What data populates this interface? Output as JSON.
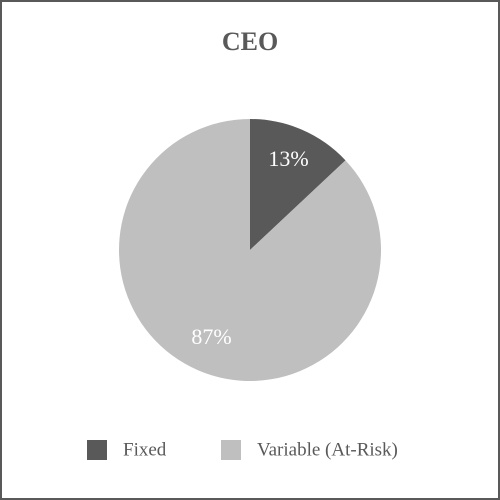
{
  "chart_data": {
    "type": "pie",
    "title": "CEO",
    "categories": [
      "Fixed",
      "Variable (At-Risk)"
    ],
    "values": [
      13,
      87
    ],
    "value_labels": [
      "13%",
      "87%"
    ],
    "colors": [
      "#595959",
      "#bfbfbf"
    ],
    "legend": "bottom"
  }
}
